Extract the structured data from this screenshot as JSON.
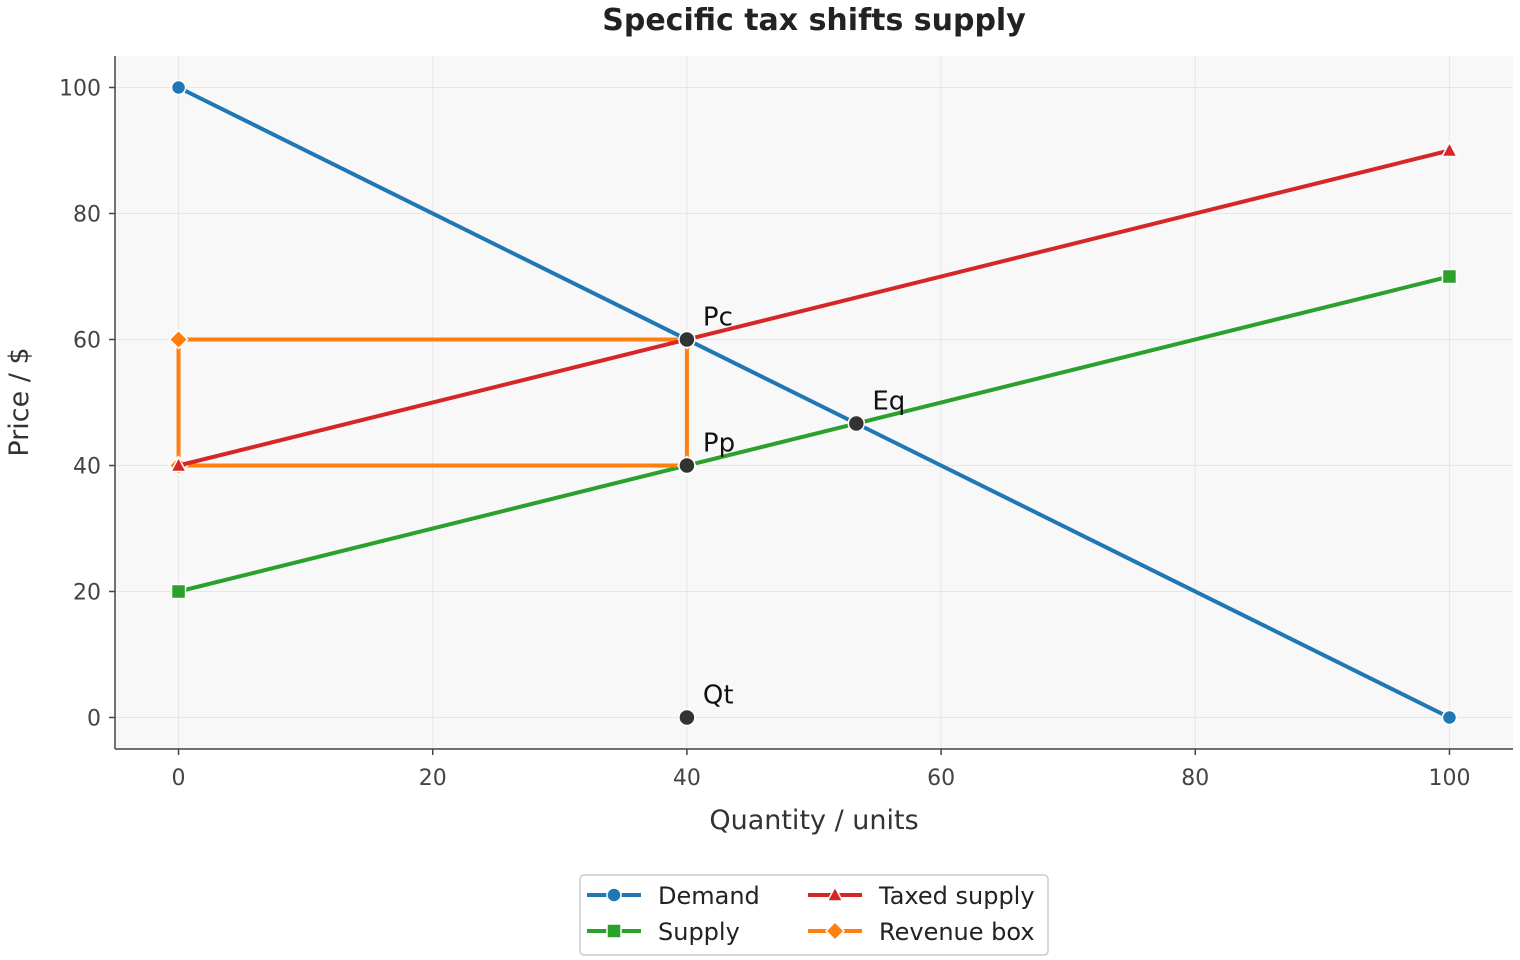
{
  "chart_data": {
    "type": "line",
    "title": "Specific tax shifts supply",
    "xlabel": "Quantity / units",
    "ylabel": "Price / $",
    "xlim": [
      -5,
      105
    ],
    "ylim": [
      -5,
      105
    ],
    "xticks": [
      0,
      20,
      40,
      60,
      80,
      100
    ],
    "yticks": [
      0,
      20,
      40,
      60,
      80,
      100
    ],
    "grid": true,
    "legend_position": "bottom-center",
    "series": [
      {
        "name": "Demand",
        "color": "#1f77b4",
        "marker": "circle",
        "x": [
          0,
          100
        ],
        "y": [
          100,
          0
        ]
      },
      {
        "name": "Supply",
        "color": "#2ca02c",
        "marker": "square",
        "x": [
          0,
          100
        ],
        "y": [
          20,
          70
        ]
      },
      {
        "name": "Taxed supply",
        "color": "#d62728",
        "marker": "triangle",
        "x": [
          0,
          100
        ],
        "y": [
          40,
          90
        ]
      },
      {
        "name": "Revenue box",
        "color": "#ff7f0e",
        "marker": "diamond",
        "x": [
          0,
          40,
          40,
          0,
          0
        ],
        "y": [
          40,
          40,
          60,
          60,
          40
        ]
      }
    ],
    "points": [
      {
        "label": "Pc",
        "x": 40,
        "y": 60
      },
      {
        "label": "Pp",
        "x": 40,
        "y": 40
      },
      {
        "label": "Eq",
        "x": 53.33,
        "y": 46.67
      },
      {
        "label": "Qt",
        "x": 40,
        "y": 0
      }
    ],
    "colors": {
      "points": "#333333",
      "plot_background": "#f8f8f8",
      "grid": "#e6e6e6"
    }
  }
}
